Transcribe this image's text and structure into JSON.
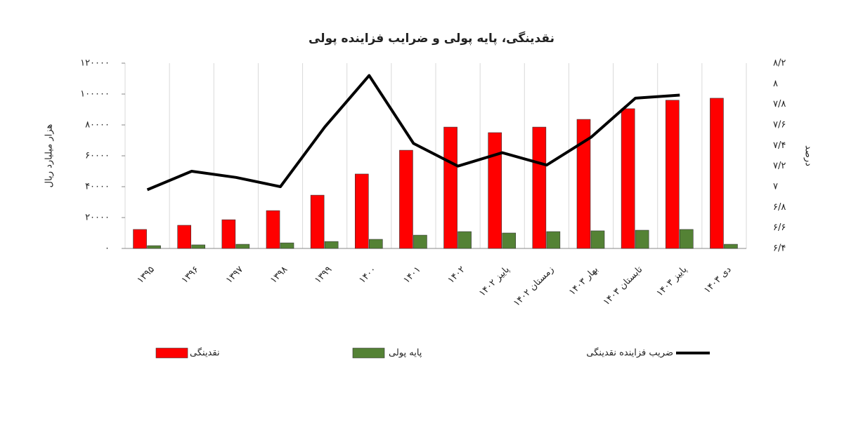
{
  "chart_data": {
    "type": "bar_line",
    "title": "نقدینگی، پایه پولی و ضرایب فزاینده پولی",
    "ylabel": "هزار میلیارد ریال",
    "y2label": "درصد",
    "categories": [
      "۱۳۹۵",
      "۱۳۹۶",
      "۱۳۹۷",
      "۱۳۹۸",
      "۱۳۹۹",
      "۱۴۰۰",
      "۱۴۰۱",
      "۱۴۰۲",
      "پاییز ۱۴۰۲",
      "زمستان ۱۴۰۲",
      "بهار ۱۴۰۳",
      "تابستان ۱۴۰۳",
      "پاییز ۱۴۰۳",
      "دی ۱۴۰۳"
    ],
    "series": [
      {
        "name": "نقدینگی",
        "type": "bar",
        "color": "#ff0000",
        "values": [
          12300,
          15000,
          18600,
          24500,
          34500,
          48200,
          63600,
          78600,
          75000,
          78600,
          83600,
          90500,
          96000,
          97300
        ]
      },
      {
        "name": "پایه پولی",
        "type": "bar",
        "color": "#548235",
        "values": [
          1800,
          2300,
          2700,
          3600,
          4500,
          5900,
          8600,
          10900,
          10000,
          10900,
          11400,
          11800,
          12300,
          2700
        ]
      },
      {
        "name": "ضریب فزاینده نقدینگی",
        "type": "line",
        "axis": "y2",
        "color": "#000000",
        "values": [
          6.97,
          7.15,
          7.09,
          7.0,
          7.58,
          8.08,
          7.42,
          7.2,
          7.33,
          7.21,
          7.48,
          7.86,
          7.89,
          null
        ]
      }
    ],
    "ylim": [
      0,
      120000
    ],
    "yticks": [
      {
        "value": 0,
        "label": "۰"
      },
      {
        "value": 20000,
        "label": "۲۰۰۰۰"
      },
      {
        "value": 40000,
        "label": "۴۰۰۰۰"
      },
      {
        "value": 60000,
        "label": "۶۰۰۰۰"
      },
      {
        "value": 80000,
        "label": "۸۰۰۰۰"
      },
      {
        "value": 100000,
        "label": "۱۰۰۰۰۰"
      },
      {
        "value": 120000,
        "label": "۱۲۰۰۰۰"
      }
    ],
    "y2lim": [
      6.4,
      8.2
    ],
    "y2ticks": [
      {
        "value": 6.4,
        "label": "۶/۴"
      },
      {
        "value": 6.6,
        "label": "۶/۶"
      },
      {
        "value": 6.8,
        "label": "۶/۸"
      },
      {
        "value": 7,
        "label": "۷"
      },
      {
        "value": 7.2,
        "label": "۷/۲"
      },
      {
        "value": 7.4,
        "label": "۷/۴"
      },
      {
        "value": 7.6,
        "label": "۷/۶"
      },
      {
        "value": 7.8,
        "label": "۷/۸"
      },
      {
        "value": 8,
        "label": "۸"
      },
      {
        "value": 8.2,
        "label": "۸/۲"
      }
    ],
    "legend": "bottom"
  }
}
